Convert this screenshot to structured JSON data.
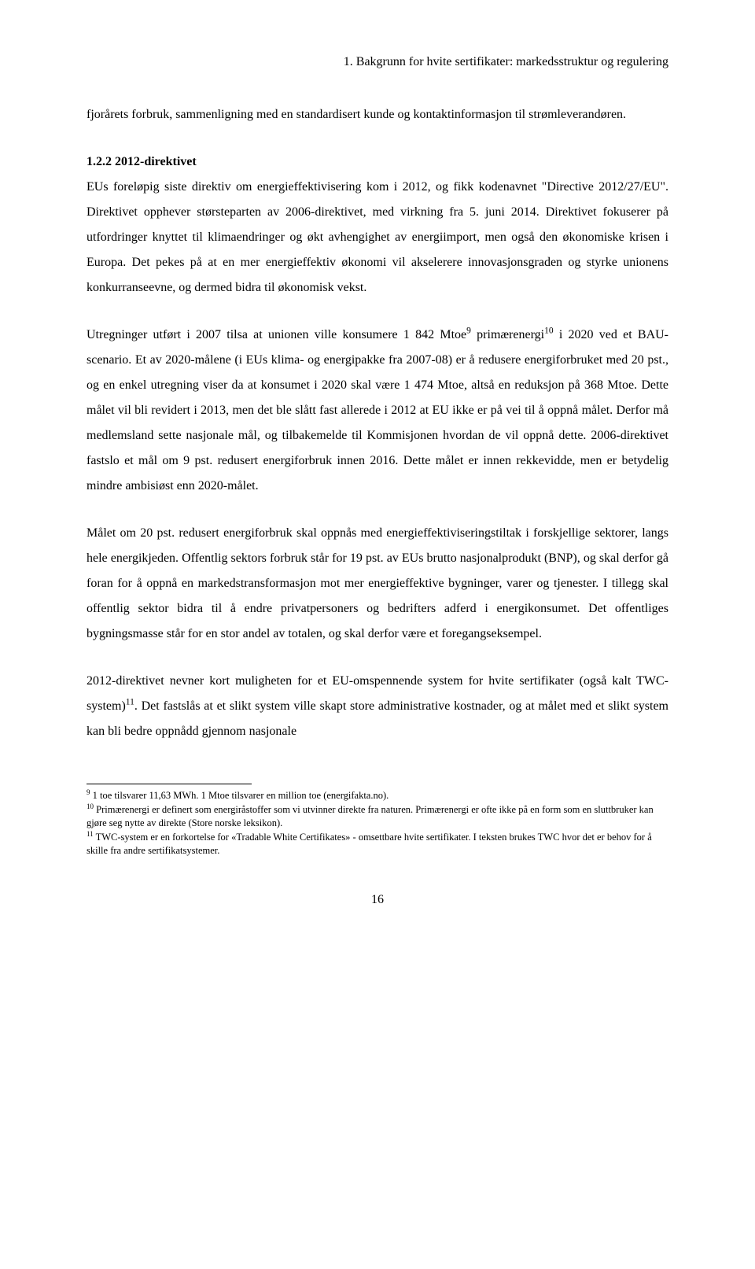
{
  "header": "1. Bakgrunn for hvite sertifikater: markedsstruktur og regulering",
  "intro": "fjorårets forbruk, sammenligning med en standardisert kunde og kontaktinformasjon til strømleverandøren.",
  "sectionHeading": "1.2.2 2012-direktivet",
  "p1": "EUs foreløpig siste direktiv om energieffektivisering kom i 2012, og fikk kodenavnet \"Directive 2012/27/EU\". Direktivet opphever størsteparten av 2006-direktivet, med virkning fra 5. juni 2014. Direktivet fokuserer på utfordringer knyttet til klimaendringer og økt avhengighet av energiimport, men også den økonomiske krisen i Europa. Det pekes på at en mer energieffektiv økonomi vil akselerere innovasjonsgraden og styrke unionens konkurranseevne, og dermed bidra til økonomisk vekst.",
  "p2a": "Utregninger utført i 2007 tilsa at unionen ville konsumere 1 842 Mtoe",
  "p2b": " primærenergi",
  "p2c": " i 2020 ved et BAU-scenario. Et av 2020-målene (i EUs klima- og energipakke fra 2007-08) er å redusere energiforbruket med 20 pst., og en enkel utregning viser da at konsumet i 2020 skal være 1 474 Mtoe, altså en reduksjon på 368 Mtoe. Dette målet vil bli revidert i 2013, men det ble slått fast allerede i 2012 at EU ikke er på vei til å oppnå målet. Derfor må medlemsland sette nasjonale mål, og tilbakemelde til Kommisjonen hvordan de vil oppnå dette. 2006-direktivet fastslo et mål om 9 pst. redusert energiforbruk innen 2016. Dette målet er innen rekkevidde, men er betydelig mindre ambisiøst enn 2020-målet.",
  "p3": "Målet om 20 pst. redusert energiforbruk skal oppnås med energieffektiviseringstiltak i forskjellige sektorer, langs hele energikjeden. Offentlig sektors forbruk står for 19 pst. av EUs brutto nasjonalprodukt (BNP), og skal derfor gå foran for å oppnå en markedstransformasjon mot mer energieffektive bygninger, varer og tjenester. I tillegg skal offentlig sektor bidra til å endre privatpersoners og bedrifters adferd i energikonsumet. Det offentliges bygningsmasse står for en stor andel av totalen, og skal derfor være et foregangseksempel.",
  "p4a": "2012-direktivet nevner kort muligheten for et EU-omspennende system for hvite sertifikater (også kalt TWC-system)",
  "p4b": ". Det fastslås at et slikt system ville skapt store administrative kostnader, og at målet med et slikt system kan bli bedre oppnådd gjennom nasjonale",
  "sup9": "9",
  "sup10": "10",
  "sup11": "11",
  "fn9num": "9",
  "fn9": " 1 toe tilsvarer 11,63 MWh. 1 Mtoe tilsvarer en million toe (energifakta.no).",
  "fn10num": "10",
  "fn10": " Primærenergi er definert som energiråstoffer som vi utvinner direkte fra naturen. Primærenergi er ofte ikke på en form som en sluttbruker kan gjøre seg nytte av direkte (Store norske leksikon).",
  "fn11num": "11",
  "fn11": " TWC-system er en forkortelse for «Tradable White Certifikates» - omsettbare hvite sertifikater. I teksten brukes TWC hvor det er behov for å skille fra andre sertifikatsystemer.",
  "pageNumber": "16"
}
